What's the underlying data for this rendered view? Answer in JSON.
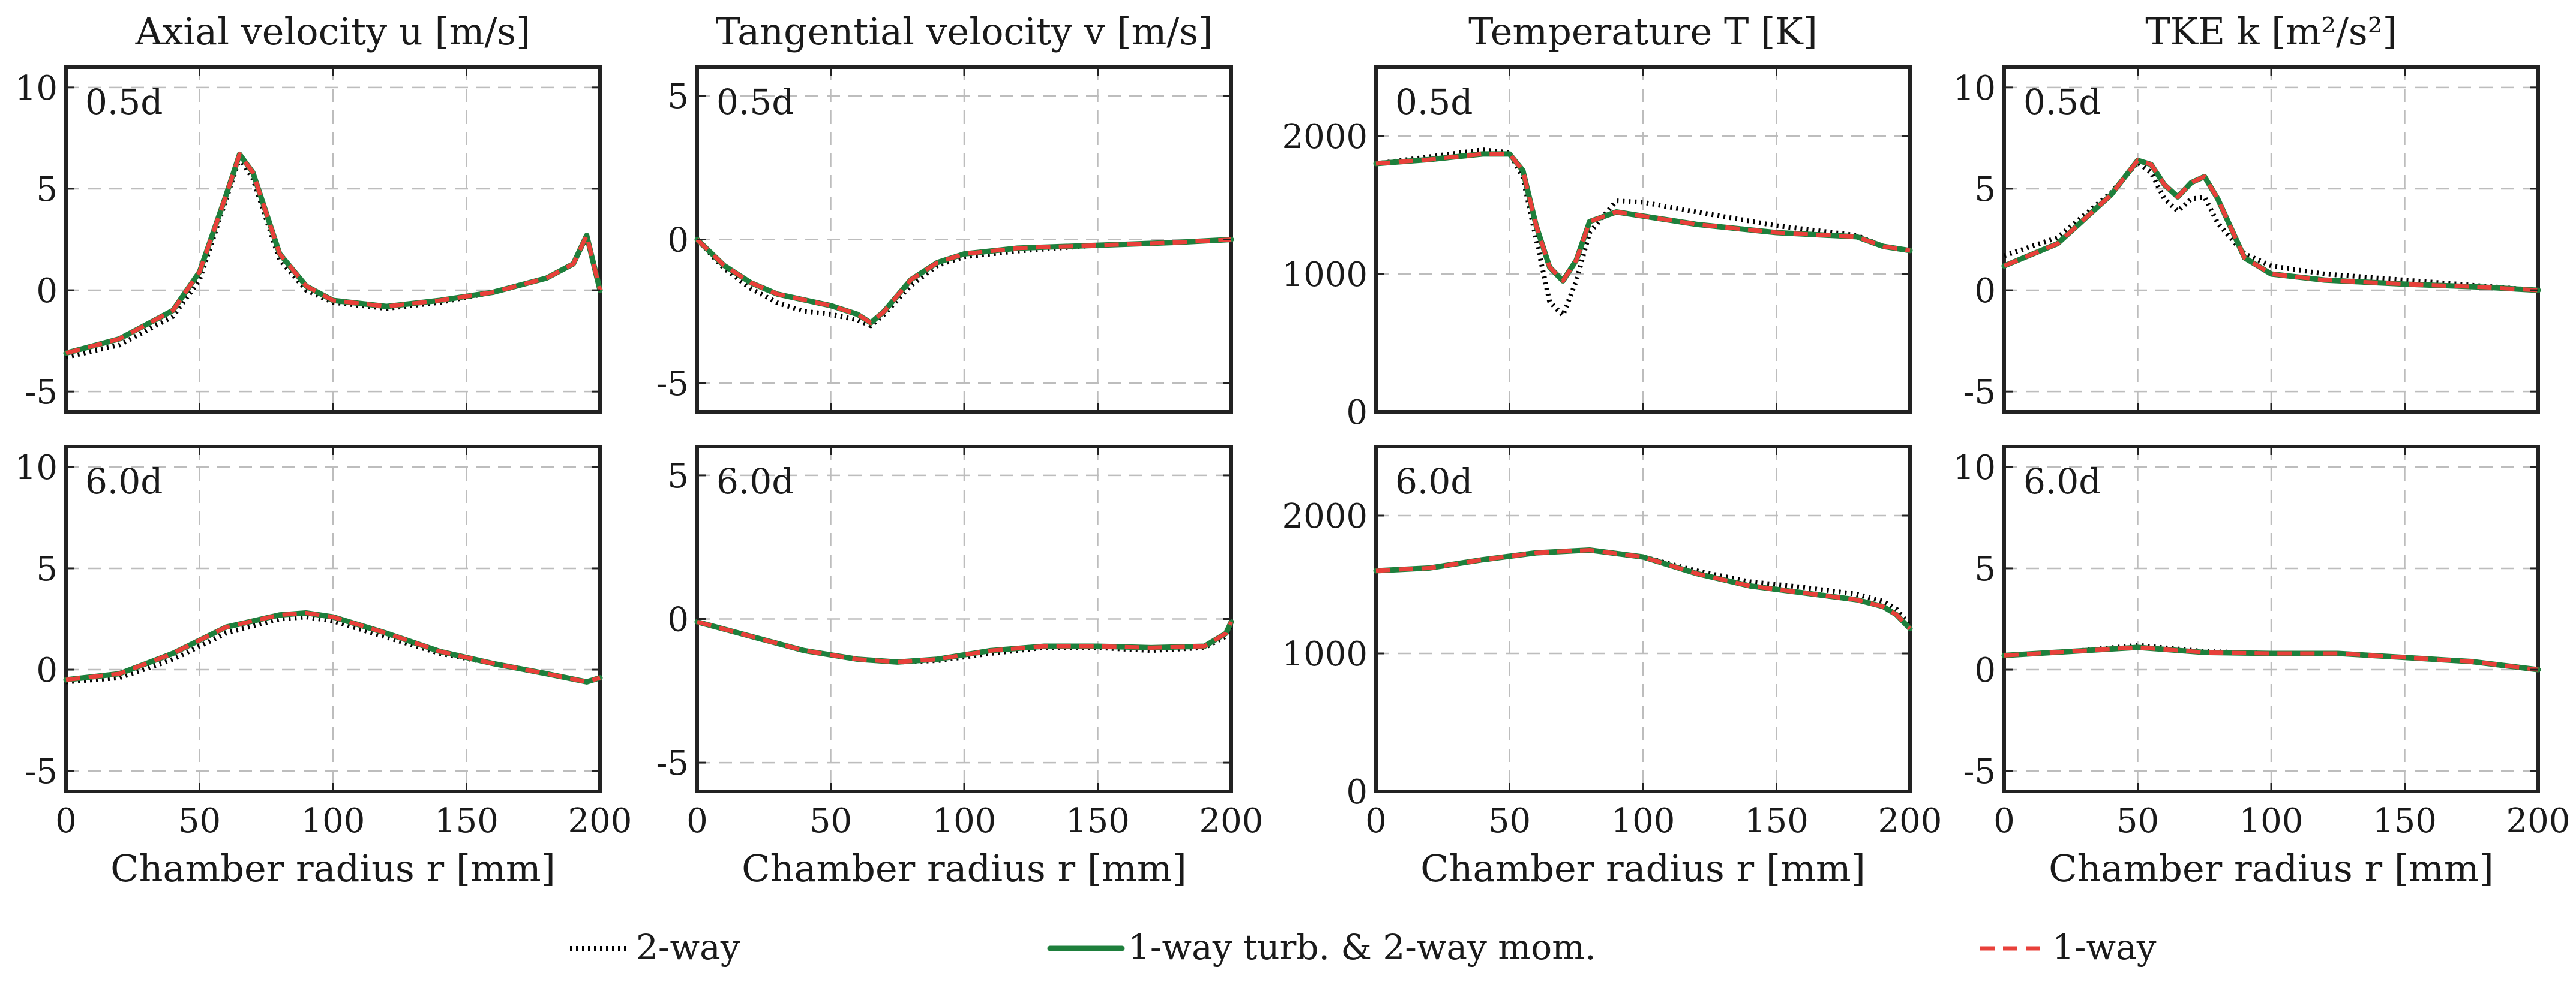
{
  "legend": [
    {
      "label": "2-way",
      "color": "#000000",
      "style": "dotted"
    },
    {
      "label": "1-way turb. & 2-way mom.",
      "color": "#1e7f3c",
      "style": "solid"
    },
    {
      "label": "1-way",
      "color": "#e8403a",
      "style": "dashed"
    }
  ],
  "chart_data": [
    {
      "type": "line",
      "title": "Axial velocity u [m/s]",
      "panel_label": "0.5d",
      "xlabel": "",
      "ylabel": "",
      "xlim": [
        0,
        200
      ],
      "ylim": [
        -6,
        11
      ],
      "xticks": [
        0,
        50,
        100,
        150,
        200
      ],
      "yticks": [
        -5,
        0,
        5,
        10
      ],
      "series": [
        {
          "name": "2-way",
          "x": [
            0,
            20,
            40,
            50,
            60,
            65,
            70,
            75,
            80,
            90,
            100,
            120,
            140,
            160,
            180,
            190,
            195,
            200
          ],
          "y": [
            -3.3,
            -2.7,
            -1.3,
            0.5,
            4.5,
            6.5,
            5.5,
            3.5,
            1.5,
            0.0,
            -0.6,
            -0.9,
            -0.6,
            -0.1,
            0.6,
            1.3,
            2.6,
            0.0
          ]
        },
        {
          "name": "1-way turb. & 2-way mom.",
          "x": [
            0,
            20,
            40,
            50,
            60,
            65,
            70,
            75,
            80,
            90,
            100,
            120,
            140,
            160,
            180,
            190,
            195,
            200
          ],
          "y": [
            -3.1,
            -2.4,
            -1.0,
            0.9,
            4.7,
            6.7,
            5.8,
            3.8,
            1.8,
            0.2,
            -0.5,
            -0.8,
            -0.5,
            -0.1,
            0.6,
            1.3,
            2.7,
            0.0
          ]
        },
        {
          "name": "1-way",
          "x": [
            0,
            20,
            40,
            50,
            60,
            65,
            70,
            75,
            80,
            90,
            100,
            120,
            140,
            160,
            180,
            190,
            195,
            200
          ],
          "y": [
            -3.1,
            -2.4,
            -1.0,
            0.9,
            4.7,
            6.7,
            5.8,
            3.8,
            1.8,
            0.2,
            -0.5,
            -0.8,
            -0.5,
            -0.1,
            0.6,
            1.3,
            2.7,
            0.0
          ]
        }
      ]
    },
    {
      "type": "line",
      "title": "Tangential velocity v [m/s]",
      "panel_label": "0.5d",
      "xlabel": "",
      "ylabel": "",
      "xlim": [
        0,
        200
      ],
      "ylim": [
        -6,
        6
      ],
      "xticks": [
        0,
        50,
        100,
        150,
        200
      ],
      "yticks": [
        -5,
        0,
        5
      ],
      "series": [
        {
          "name": "2-way",
          "x": [
            0,
            10,
            20,
            30,
            40,
            50,
            60,
            65,
            70,
            80,
            90,
            100,
            120,
            150,
            180,
            200
          ],
          "y": [
            0.0,
            -1.0,
            -1.7,
            -2.2,
            -2.5,
            -2.6,
            -2.8,
            -3.0,
            -2.6,
            -1.6,
            -0.9,
            -0.6,
            -0.4,
            -0.2,
            -0.1,
            0.0
          ]
        },
        {
          "name": "1-way turb. & 2-way mom.",
          "x": [
            0,
            10,
            20,
            30,
            40,
            50,
            60,
            65,
            70,
            80,
            90,
            100,
            120,
            150,
            180,
            200
          ],
          "y": [
            0.0,
            -0.9,
            -1.5,
            -1.9,
            -2.1,
            -2.3,
            -2.6,
            -2.9,
            -2.5,
            -1.4,
            -0.8,
            -0.5,
            -0.3,
            -0.2,
            -0.1,
            0.0
          ]
        },
        {
          "name": "1-way",
          "x": [
            0,
            10,
            20,
            30,
            40,
            50,
            60,
            65,
            70,
            80,
            90,
            100,
            120,
            150,
            180,
            200
          ],
          "y": [
            0.0,
            -0.9,
            -1.5,
            -1.9,
            -2.1,
            -2.3,
            -2.6,
            -2.9,
            -2.5,
            -1.4,
            -0.8,
            -0.5,
            -0.3,
            -0.2,
            -0.1,
            0.0
          ]
        }
      ]
    },
    {
      "type": "line",
      "title": "Temperature T [K]",
      "panel_label": "0.5d",
      "xlabel": "",
      "ylabel": "",
      "xlim": [
        0,
        200
      ],
      "ylim": [
        0,
        2500
      ],
      "xticks": [
        0,
        50,
        100,
        150,
        200
      ],
      "yticks": [
        0,
        1000,
        2000
      ],
      "series": [
        {
          "name": "2-way",
          "x": [
            0,
            20,
            40,
            50,
            55,
            60,
            65,
            70,
            75,
            80,
            90,
            100,
            120,
            150,
            180,
            190,
            200
          ],
          "y": [
            1800,
            1850,
            1900,
            1880,
            1700,
            1250,
            800,
            700,
            950,
            1300,
            1530,
            1520,
            1450,
            1350,
            1280,
            1200,
            1170
          ]
        },
        {
          "name": "1-way turb. & 2-way mom.",
          "x": [
            0,
            20,
            40,
            50,
            55,
            60,
            65,
            70,
            75,
            80,
            90,
            100,
            120,
            150,
            180,
            190,
            200
          ],
          "y": [
            1800,
            1830,
            1870,
            1870,
            1750,
            1350,
            1050,
            950,
            1100,
            1380,
            1450,
            1420,
            1360,
            1300,
            1270,
            1200,
            1170
          ]
        },
        {
          "name": "1-way",
          "x": [
            0,
            20,
            40,
            50,
            55,
            60,
            65,
            70,
            75,
            80,
            90,
            100,
            120,
            150,
            180,
            190,
            200
          ],
          "y": [
            1800,
            1830,
            1870,
            1870,
            1750,
            1350,
            1050,
            950,
            1100,
            1380,
            1450,
            1420,
            1360,
            1300,
            1270,
            1200,
            1170
          ]
        }
      ]
    },
    {
      "type": "line",
      "title": "TKE k [m²/s²]",
      "panel_label": "0.5d",
      "xlabel": "",
      "ylabel": "",
      "xlim": [
        0,
        200
      ],
      "ylim": [
        -6,
        11
      ],
      "xticks": [
        0,
        50,
        100,
        150,
        200
      ],
      "yticks": [
        -5,
        0,
        5,
        10
      ],
      "series": [
        {
          "name": "2-way",
          "x": [
            0,
            20,
            40,
            50,
            55,
            60,
            65,
            70,
            75,
            80,
            90,
            100,
            120,
            150,
            180,
            200
          ],
          "y": [
            1.7,
            2.6,
            4.8,
            6.3,
            5.8,
            4.5,
            3.9,
            4.5,
            4.6,
            3.3,
            1.8,
            1.2,
            0.8,
            0.5,
            0.2,
            0.0
          ]
        },
        {
          "name": "1-way turb. & 2-way mom.",
          "x": [
            0,
            20,
            40,
            50,
            55,
            60,
            65,
            70,
            75,
            80,
            90,
            100,
            120,
            150,
            180,
            200
          ],
          "y": [
            1.2,
            2.3,
            4.7,
            6.4,
            6.2,
            5.2,
            4.6,
            5.3,
            5.6,
            4.5,
            1.6,
            0.8,
            0.5,
            0.3,
            0.15,
            0.0
          ]
        },
        {
          "name": "1-way",
          "x": [
            0,
            20,
            40,
            50,
            55,
            60,
            65,
            70,
            75,
            80,
            90,
            100,
            120,
            150,
            180,
            200
          ],
          "y": [
            1.2,
            2.3,
            4.7,
            6.4,
            6.2,
            5.2,
            4.6,
            5.3,
            5.6,
            4.5,
            1.6,
            0.8,
            0.5,
            0.3,
            0.15,
            0.0
          ]
        }
      ]
    },
    {
      "type": "line",
      "title": "",
      "panel_label": "6.0d",
      "xlabel": "Chamber radius r [mm]",
      "ylabel": "",
      "xlim": [
        0,
        200
      ],
      "ylim": [
        -6,
        11
      ],
      "xticks": [
        0,
        50,
        100,
        150,
        200
      ],
      "yticks": [
        -5,
        0,
        5,
        10
      ],
      "series": [
        {
          "name": "2-way",
          "x": [
            0,
            20,
            40,
            60,
            80,
            90,
            100,
            120,
            140,
            160,
            180,
            195,
            200
          ],
          "y": [
            -0.6,
            -0.4,
            0.5,
            1.8,
            2.5,
            2.6,
            2.4,
            1.6,
            0.8,
            0.3,
            -0.2,
            -0.6,
            -0.4
          ]
        },
        {
          "name": "1-way turb. & 2-way mom.",
          "x": [
            0,
            20,
            40,
            60,
            80,
            90,
            100,
            120,
            140,
            160,
            180,
            195,
            200
          ],
          "y": [
            -0.5,
            -0.2,
            0.8,
            2.1,
            2.7,
            2.8,
            2.6,
            1.8,
            0.9,
            0.3,
            -0.2,
            -0.6,
            -0.4
          ]
        },
        {
          "name": "1-way",
          "x": [
            0,
            20,
            40,
            60,
            80,
            90,
            100,
            120,
            140,
            160,
            180,
            195,
            200
          ],
          "y": [
            -0.5,
            -0.2,
            0.8,
            2.1,
            2.7,
            2.8,
            2.6,
            1.8,
            0.9,
            0.3,
            -0.2,
            -0.6,
            -0.4
          ]
        }
      ]
    },
    {
      "type": "line",
      "title": "",
      "panel_label": "6.0d",
      "xlabel": "Chamber radius r [mm]",
      "ylabel": "",
      "xlim": [
        0,
        200
      ],
      "ylim": [
        -6,
        6
      ],
      "xticks": [
        0,
        50,
        100,
        150,
        200
      ],
      "yticks": [
        -5,
        0,
        5
      ],
      "series": [
        {
          "name": "2-way",
          "x": [
            0,
            20,
            40,
            60,
            75,
            90,
            110,
            130,
            150,
            170,
            190,
            198,
            200
          ],
          "y": [
            -0.1,
            -0.6,
            -1.1,
            -1.4,
            -1.5,
            -1.45,
            -1.2,
            -1.0,
            -1.0,
            -1.1,
            -1.0,
            -0.6,
            -0.2
          ]
        },
        {
          "name": "1-way turb. & 2-way mom.",
          "x": [
            0,
            20,
            40,
            60,
            75,
            90,
            110,
            130,
            150,
            170,
            190,
            198,
            200
          ],
          "y": [
            -0.1,
            -0.6,
            -1.1,
            -1.4,
            -1.5,
            -1.4,
            -1.1,
            -0.95,
            -0.95,
            -1.0,
            -0.95,
            -0.5,
            -0.1
          ]
        },
        {
          "name": "1-way",
          "x": [
            0,
            20,
            40,
            60,
            75,
            90,
            110,
            130,
            150,
            170,
            190,
            198,
            200
          ],
          "y": [
            -0.1,
            -0.6,
            -1.1,
            -1.4,
            -1.5,
            -1.4,
            -1.1,
            -0.95,
            -0.95,
            -1.0,
            -0.95,
            -0.5,
            -0.1
          ]
        }
      ]
    },
    {
      "type": "line",
      "title": "",
      "panel_label": "6.0d",
      "xlabel": "Chamber radius r [mm]",
      "ylabel": "",
      "xlim": [
        0,
        200
      ],
      "ylim": [
        0,
        2500
      ],
      "xticks": [
        0,
        50,
        100,
        150,
        200
      ],
      "yticks": [
        0,
        1000,
        2000
      ],
      "series": [
        {
          "name": "2-way",
          "x": [
            0,
            20,
            40,
            60,
            80,
            100,
            120,
            140,
            160,
            180,
            190,
            195,
            200
          ],
          "y": [
            1600,
            1620,
            1680,
            1730,
            1750,
            1700,
            1600,
            1520,
            1480,
            1430,
            1380,
            1320,
            1200
          ]
        },
        {
          "name": "1-way turb. & 2-way mom.",
          "x": [
            0,
            20,
            40,
            60,
            80,
            100,
            120,
            140,
            160,
            180,
            190,
            195,
            200
          ],
          "y": [
            1600,
            1620,
            1680,
            1730,
            1750,
            1700,
            1580,
            1490,
            1440,
            1390,
            1340,
            1280,
            1180
          ]
        },
        {
          "name": "1-way",
          "x": [
            0,
            20,
            40,
            60,
            80,
            100,
            120,
            140,
            160,
            180,
            190,
            195,
            200
          ],
          "y": [
            1600,
            1620,
            1680,
            1730,
            1750,
            1700,
            1580,
            1490,
            1440,
            1390,
            1340,
            1280,
            1180
          ]
        }
      ]
    },
    {
      "type": "line",
      "title": "",
      "panel_label": "6.0d",
      "xlabel": "Chamber radius r [mm]",
      "ylabel": "",
      "xlim": [
        0,
        200
      ],
      "ylim": [
        -6,
        11
      ],
      "xticks": [
        0,
        50,
        100,
        150,
        200
      ],
      "yticks": [
        -5,
        0,
        5,
        10
      ],
      "series": [
        {
          "name": "2-way",
          "x": [
            0,
            25,
            50,
            75,
            100,
            125,
            150,
            175,
            200
          ],
          "y": [
            0.7,
            0.9,
            1.2,
            0.9,
            0.8,
            0.8,
            0.6,
            0.4,
            0.0
          ]
        },
        {
          "name": "1-way turb. & 2-way mom.",
          "x": [
            0,
            25,
            50,
            75,
            100,
            125,
            150,
            175,
            200
          ],
          "y": [
            0.7,
            0.9,
            1.1,
            0.85,
            0.8,
            0.8,
            0.6,
            0.4,
            0.0
          ]
        },
        {
          "name": "1-way",
          "x": [
            0,
            25,
            50,
            75,
            100,
            125,
            150,
            175,
            200
          ],
          "y": [
            0.7,
            0.9,
            1.1,
            0.85,
            0.8,
            0.8,
            0.6,
            0.4,
            0.0
          ]
        }
      ]
    }
  ]
}
